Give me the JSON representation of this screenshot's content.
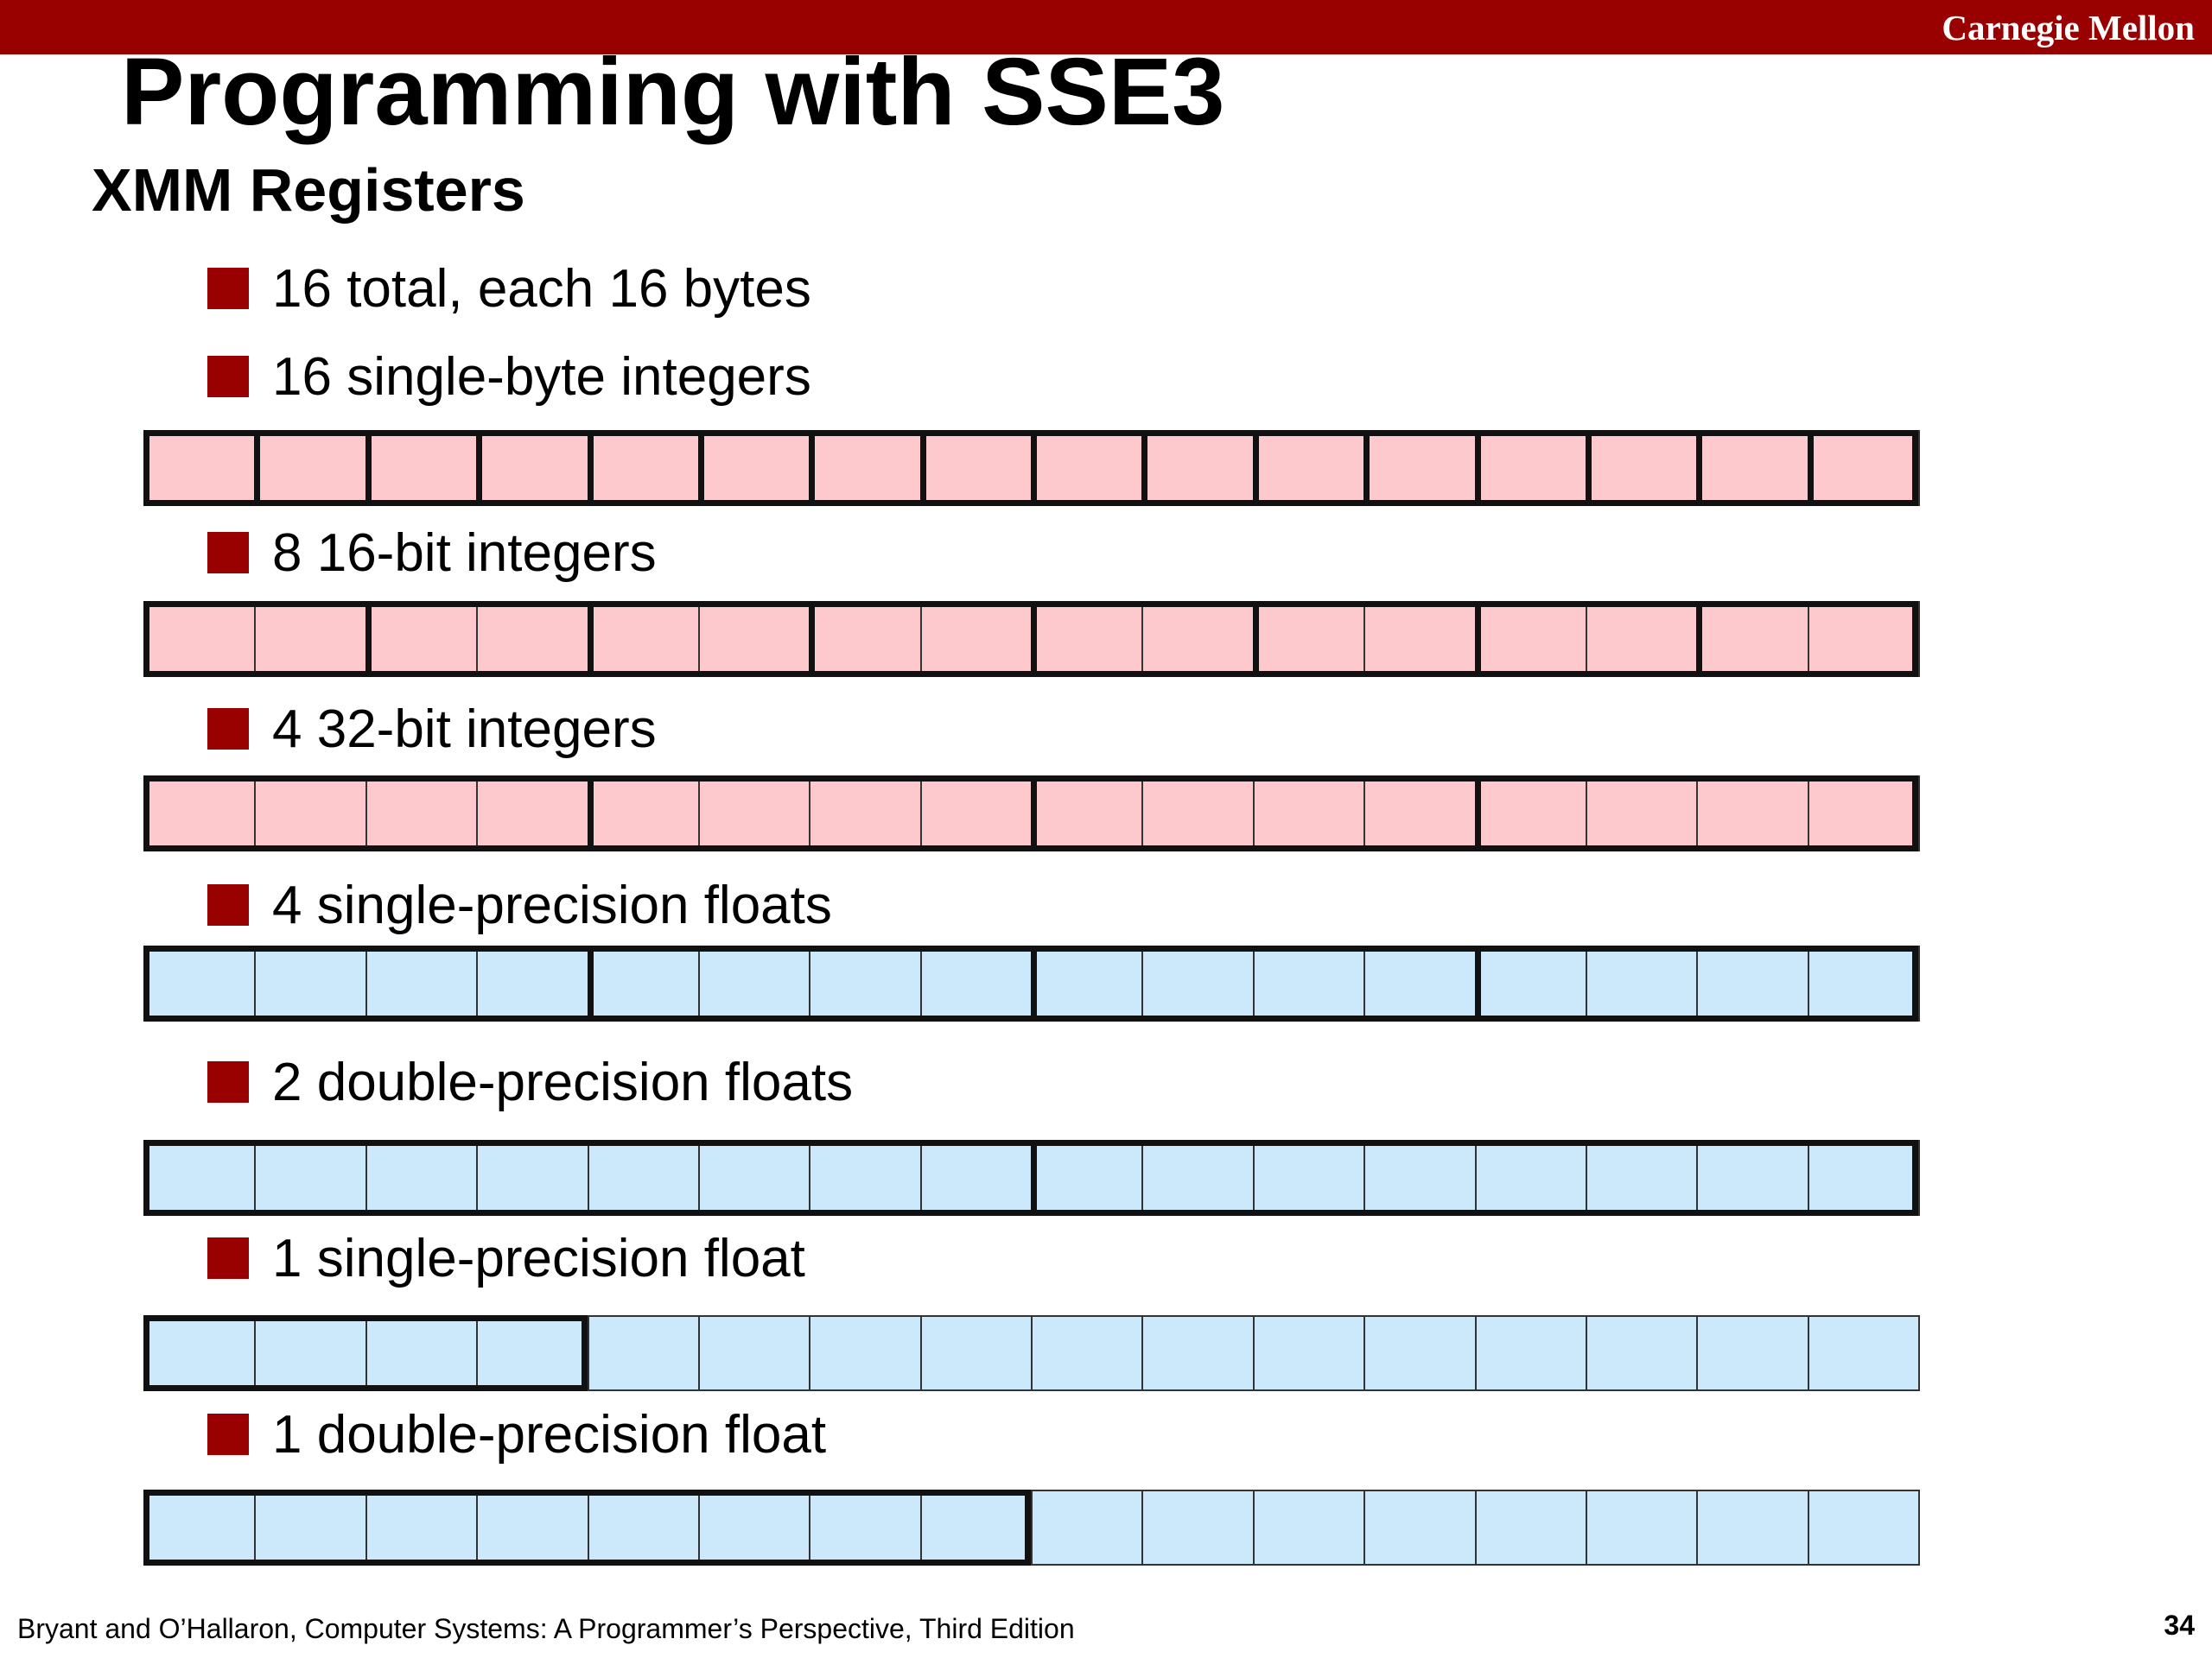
{
  "header": {
    "brand": "Carnegie Mellon"
  },
  "title": "Programming with SSE3",
  "subtitle": "XMM Registers",
  "colors": {
    "accent": "#990000",
    "integer_fill": "#fdc9cc",
    "float_fill": "#cce8fb"
  },
  "bullets": [
    {
      "text": "16 total, each 16 bytes",
      "register": null
    },
    {
      "text": "16 single-byte integers",
      "register": {
        "fill": "integer",
        "bytes_per_element": 1,
        "elements": 16
      }
    },
    {
      "text": "8 16-bit integers",
      "register": {
        "fill": "integer",
        "bytes_per_element": 2,
        "elements": 8
      }
    },
    {
      "text": "4 32-bit integers",
      "register": {
        "fill": "integer",
        "bytes_per_element": 4,
        "elements": 4
      }
    },
    {
      "text": "4 single-precision floats",
      "register": {
        "fill": "float",
        "bytes_per_element": 4,
        "elements": 4
      }
    },
    {
      "text": "2 double-precision floats",
      "register": {
        "fill": "float",
        "bytes_per_element": 8,
        "elements": 2
      }
    },
    {
      "text": "1 single-precision float",
      "register": {
        "fill": "float",
        "bytes_per_element": 4,
        "elements": 1
      }
    },
    {
      "text": "1 double-precision float",
      "register": {
        "fill": "float",
        "bytes_per_element": 8,
        "elements": 1
      }
    }
  ],
  "register_bytes": 16,
  "footer": {
    "citation": "Bryant and O’Hallaron, Computer Systems: A Programmer’s Perspective, Third Edition",
    "page_number": "34"
  }
}
